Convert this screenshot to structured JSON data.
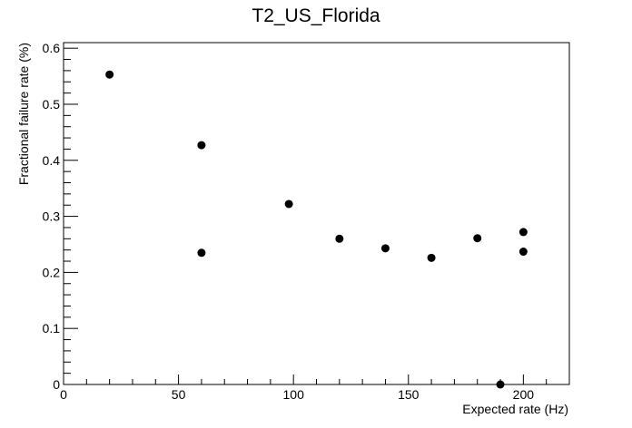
{
  "chart_data": {
    "type": "scatter",
    "title": "T2_US_Florida",
    "xlabel": "Expected rate (Hz)",
    "ylabel": "Fractional failure rate (%)",
    "xlim": [
      0,
      220
    ],
    "ylim": [
      0,
      0.61
    ],
    "x_ticks": [
      0,
      50,
      100,
      150,
      200
    ],
    "y_ticks": [
      0,
      0.1,
      0.2,
      0.3,
      0.4,
      0.5,
      0.6
    ],
    "x_tick_labels": [
      "0",
      "50",
      "100",
      "150",
      "200"
    ],
    "y_tick_labels": [
      "0",
      "0.1",
      "0.2",
      "0.3",
      "0.4",
      "0.5",
      "0.6"
    ],
    "grid": false,
    "legend": "none",
    "marker_color": "#000000",
    "points": [
      {
        "x": 20,
        "y": 0.553
      },
      {
        "x": 60,
        "y": 0.427
      },
      {
        "x": 60,
        "y": 0.235
      },
      {
        "x": 98,
        "y": 0.322
      },
      {
        "x": 120,
        "y": 0.26
      },
      {
        "x": 140,
        "y": 0.243
      },
      {
        "x": 160,
        "y": 0.226
      },
      {
        "x": 180,
        "y": 0.261
      },
      {
        "x": 190,
        "y": 0.0
      },
      {
        "x": 200,
        "y": 0.272
      },
      {
        "x": 200,
        "y": 0.237
      }
    ]
  }
}
